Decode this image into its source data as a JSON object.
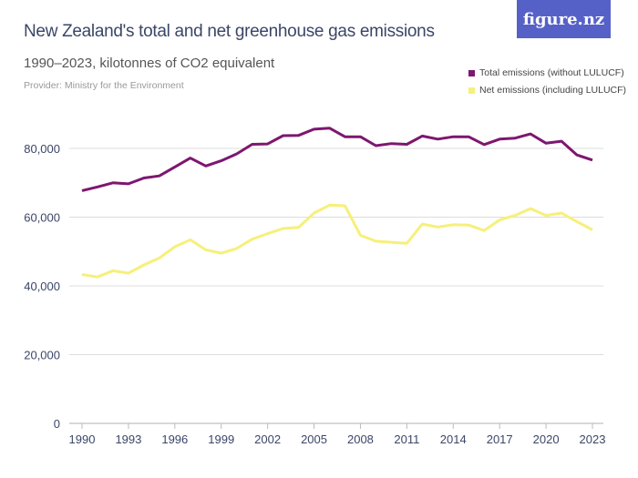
{
  "logo": "figure.nz",
  "chart_data": {
    "type": "line",
    "title": "New Zealand's total and net greenhouse gas emissions",
    "subtitle": "1990–2023, kilotonnes of CO2 equivalent",
    "provider": "Provider: Ministry for the Environment",
    "xlabel": "",
    "ylabel": "",
    "ylim": [
      0,
      80000
    ],
    "xlim": [
      1990,
      2023
    ],
    "grid": true,
    "legend_position": "top-right",
    "y_ticks": [
      0,
      20000,
      40000,
      60000,
      80000
    ],
    "y_tick_labels": [
      "0",
      "20,000",
      "40,000",
      "60,000",
      "80,000"
    ],
    "x_ticks": [
      "1990",
      "1993",
      "1996",
      "1999",
      "2002",
      "2005",
      "2008",
      "2011",
      "2014",
      "2017",
      "2020",
      "2023"
    ],
    "x": [
      1990,
      1991,
      1992,
      1993,
      1994,
      1995,
      1996,
      1997,
      1998,
      1999,
      2000,
      2001,
      2002,
      2003,
      2004,
      2005,
      2006,
      2007,
      2008,
      2009,
      2010,
      2011,
      2012,
      2013,
      2014,
      2015,
      2016,
      2017,
      2018,
      2019,
      2020,
      2021,
      2022,
      2023
    ],
    "series": [
      {
        "name": "Total emissions (without LULUCF)",
        "color": "#7d176f",
        "values": [
          67700,
          68800,
          70000,
          69700,
          71400,
          72000,
          74600,
          77200,
          74900,
          76400,
          78400,
          81200,
          81300,
          83700,
          83800,
          85600,
          85900,
          83400,
          83400,
          80800,
          81400,
          81200,
          83600,
          82700,
          83400,
          83400,
          81100,
          82700,
          83000,
          84200,
          81500,
          82100,
          78100,
          76600
        ]
      },
      {
        "name": "Net emissions (including LULUCF)",
        "color": "#f6f07a",
        "values": [
          43300,
          42600,
          44400,
          43700,
          46100,
          48100,
          51400,
          53400,
          50500,
          49500,
          50900,
          53600,
          55200,
          56700,
          57000,
          61200,
          63500,
          63300,
          54700,
          53000,
          52700,
          52400,
          58000,
          57100,
          57800,
          57700,
          56100,
          59200,
          60500,
          62500,
          60500,
          61200,
          58700,
          56300
        ]
      }
    ]
  }
}
